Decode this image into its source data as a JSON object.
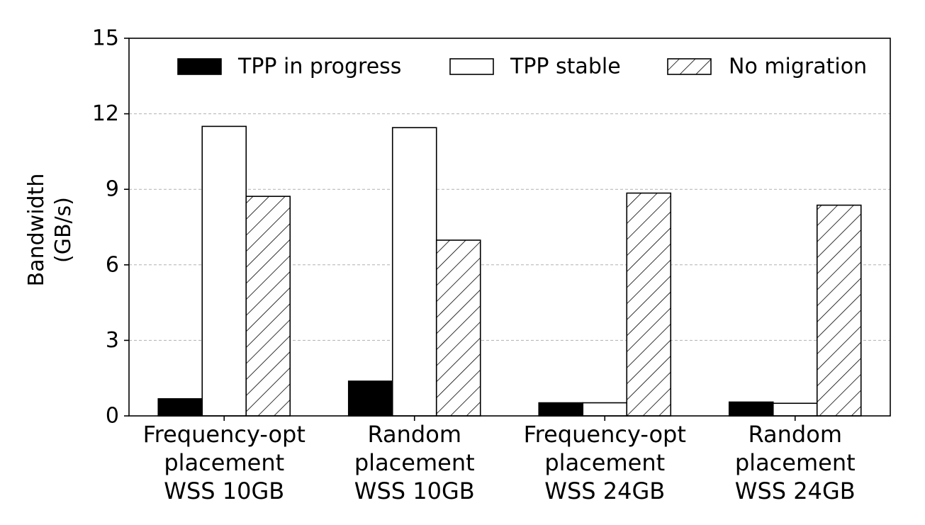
{
  "chart_data": {
    "type": "bar",
    "categories": [
      [
        "Frequency-opt",
        "placement",
        "WSS 10GB"
      ],
      [
        "Random",
        "placement",
        "WSS 10GB"
      ],
      [
        "Frequency-opt",
        "placement",
        "WSS 24GB"
      ],
      [
        "Random",
        "placement",
        "WSS 24GB"
      ]
    ],
    "series": [
      {
        "name": "TPP in progress",
        "values": [
          0.68,
          1.38,
          0.52,
          0.55
        ],
        "fill": "#000000",
        "pattern": "solid"
      },
      {
        "name": "TPP stable",
        "values": [
          11.5,
          11.45,
          0.52,
          0.5
        ],
        "fill": "#ffffff",
        "pattern": "none"
      },
      {
        "name": "No migration",
        "values": [
          8.72,
          6.98,
          8.85,
          8.37
        ],
        "fill": "#ffffff",
        "pattern": "diagonal-hatch"
      }
    ],
    "ylabel": [
      "Bandwidth",
      "(GB/s)"
    ],
    "xlabel": "",
    "ylim": [
      0,
      15
    ],
    "yticks": [
      0,
      3,
      6,
      9,
      12,
      15
    ],
    "grid": "y-dashed",
    "legend": "top",
    "colors": {
      "axis": "#000000",
      "grid": "#b0b0b0"
    }
  }
}
